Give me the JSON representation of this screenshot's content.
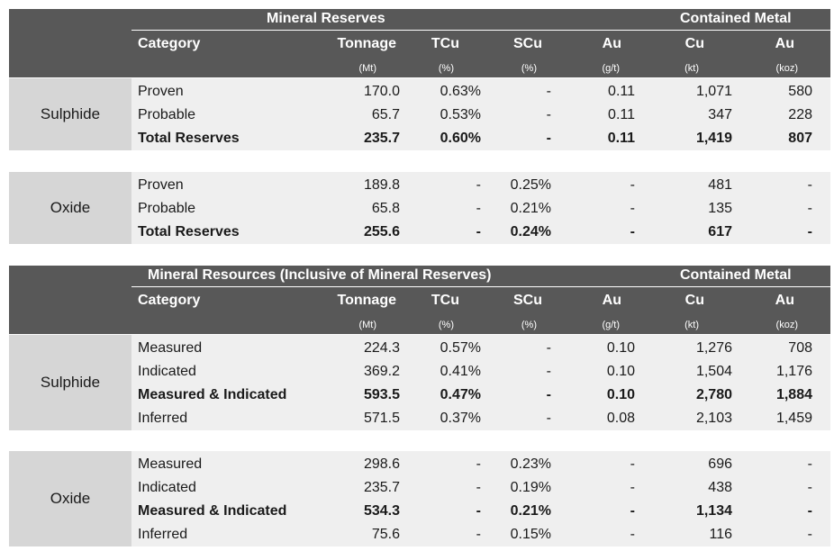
{
  "reserves": {
    "title": "Mineral Reserves",
    "contained_title": "Contained Metal",
    "headers": [
      "Category",
      "Tonnage",
      "TCu",
      "SCu",
      "Au",
      "Cu",
      "Au"
    ],
    "units": [
      "",
      "(Mt)",
      "(%)",
      "(%)",
      "(g/t)",
      "(kt)",
      "(koz)"
    ],
    "sections": [
      {
        "label": "Sulphide",
        "rows": [
          {
            "cells": [
              "Proven",
              "170.0",
              "0.63%",
              "-",
              "0.11",
              "1,071",
              "580"
            ],
            "bold": false
          },
          {
            "cells": [
              "Probable",
              "65.7",
              "0.53%",
              "-",
              "0.11",
              "347",
              "228"
            ],
            "bold": false
          },
          {
            "cells": [
              "Total Reserves",
              "235.7",
              "0.60%",
              "-",
              "0.11",
              "1,419",
              "807"
            ],
            "bold": true
          }
        ]
      },
      {
        "label": "Oxide",
        "rows": [
          {
            "cells": [
              "Proven",
              "189.8",
              "-",
              "0.25%",
              "-",
              "481",
              "-"
            ],
            "bold": false
          },
          {
            "cells": [
              "Probable",
              "65.8",
              "-",
              "0.21%",
              "-",
              "135",
              "-"
            ],
            "bold": false
          },
          {
            "cells": [
              "Total Reserves",
              "255.6",
              "-",
              "0.24%",
              "-",
              "617",
              "-"
            ],
            "bold": true
          }
        ]
      }
    ]
  },
  "resources": {
    "title": "Mineral Resources (Inclusive of Mineral Reserves)",
    "contained_title": "Contained Metal",
    "headers": [
      "Category",
      "Tonnage",
      "TCu",
      "SCu",
      "Au",
      "Cu",
      "Au"
    ],
    "units": [
      "",
      "(Mt)",
      "(%)",
      "(%)",
      "(g/t)",
      "(kt)",
      "(koz)"
    ],
    "sections": [
      {
        "label": "Sulphide",
        "rows": [
          {
            "cells": [
              "Measured",
              "224.3",
              "0.57%",
              "-",
              "0.10",
              "1,276",
              "708"
            ],
            "bold": false
          },
          {
            "cells": [
              "Indicated",
              "369.2",
              "0.41%",
              "-",
              "0.10",
              "1,504",
              "1,176"
            ],
            "bold": false
          },
          {
            "cells": [
              "Measured & Indicated",
              "593.5",
              "0.47%",
              "-",
              "0.10",
              "2,780",
              "1,884"
            ],
            "bold": true
          },
          {
            "cells": [
              "Inferred",
              "571.5",
              "0.37%",
              "-",
              "0.08",
              "2,103",
              "1,459"
            ],
            "bold": false
          }
        ]
      },
      {
        "label": "Oxide",
        "rows": [
          {
            "cells": [
              "Measured",
              "298.6",
              "-",
              "0.23%",
              "-",
              "696",
              "-"
            ],
            "bold": false
          },
          {
            "cells": [
              "Indicated",
              "235.7",
              "-",
              "0.19%",
              "-",
              "438",
              "-"
            ],
            "bold": false
          },
          {
            "cells": [
              "Measured & Indicated",
              "534.3",
              "-",
              "0.21%",
              "-",
              "1,134",
              "-"
            ],
            "bold": true
          },
          {
            "cells": [
              "Inferred",
              "75.6",
              "-",
              "0.15%",
              "-",
              "116",
              "-"
            ],
            "bold": false
          }
        ]
      }
    ]
  }
}
